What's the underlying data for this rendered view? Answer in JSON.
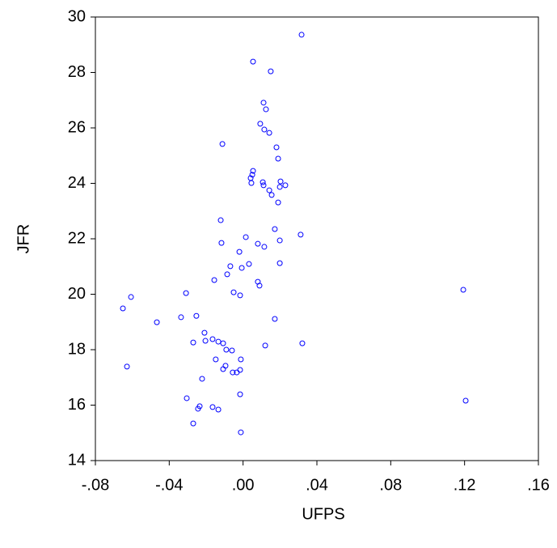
{
  "chart_data": {
    "type": "scatter",
    "x_label": "UFPS",
    "y_label": "JFR",
    "color": "#0000ff",
    "x": [
      0.0317,
      0.0054,
      0.015,
      0.0111,
      0.0124,
      0.0093,
      0.0115,
      0.0142,
      -0.0112,
      0.0181,
      0.019,
      0.0054,
      0.005,
      0.0041,
      0.0045,
      0.0107,
      0.0111,
      0.0203,
      0.0199,
      0.0229,
      0.0142,
      0.0155,
      0.019,
      -0.0121,
      0.0172,
      0.0312,
      0.0015,
      -0.0117,
      0.008,
      0.0115,
      0.0199,
      -0.002,
      0.0032,
      0.0199,
      -0.0069,
      -0.0007,
      -0.0086,
      -0.0156,
      0.008,
      0.0089,
      0.1193,
      -0.0309,
      -0.0051,
      -0.0016,
      -0.0607,
      -0.0651,
      -0.0253,
      -0.0336,
      0.0172,
      -0.0467,
      -0.0209,
      -0.027,
      -0.0204,
      -0.0165,
      -0.0134,
      -0.0108,
      0.0321,
      0.012,
      -0.0091,
      -0.006,
      -0.0148,
      -0.0012,
      -0.0629,
      -0.0095,
      -0.0108,
      -0.0016,
      -0.0056,
      -0.0034,
      -0.0222,
      -0.0016,
      0.1206,
      -0.0305,
      -0.0235,
      -0.0244,
      -0.0165,
      -0.0134,
      -0.027,
      -0.0012
    ],
    "values": [
      29.36,
      28.39,
      28.04,
      26.91,
      26.67,
      26.15,
      25.94,
      25.82,
      25.42,
      25.3,
      24.89,
      24.45,
      24.31,
      24.19,
      24.01,
      24.04,
      23.93,
      24.07,
      23.87,
      23.93,
      23.75,
      23.58,
      23.31,
      22.67,
      22.35,
      22.15,
      22.06,
      21.85,
      21.82,
      21.71,
      21.94,
      21.53,
      21.09,
      21.12,
      21.01,
      20.95,
      20.72,
      20.51,
      20.45,
      20.31,
      20.16,
      20.04,
      20.07,
      19.96,
      19.9,
      19.49,
      19.22,
      19.17,
      19.11,
      18.99,
      18.61,
      18.26,
      18.32,
      18.38,
      18.29,
      18.23,
      18.23,
      18.15,
      18.0,
      17.97,
      17.65,
      17.65,
      17.39,
      17.42,
      17.3,
      17.27,
      17.18,
      17.18,
      16.95,
      16.39,
      16.16,
      16.25,
      15.96,
      15.87,
      15.93,
      15.84,
      15.34,
      15.02
    ],
    "xlim": [
      -0.08,
      0.16
    ],
    "xticks": [
      {
        "value": -0.08,
        "label": "-.08"
      },
      {
        "value": -0.04,
        "label": "-.04"
      },
      {
        "value": 0,
        "label": ".00"
      },
      {
        "value": 0.04,
        "label": ".04"
      },
      {
        "value": 0.08,
        "label": ".08"
      },
      {
        "value": 0.12,
        "label": ".12"
      },
      {
        "value": 0.16,
        "label": ".16"
      }
    ],
    "ylim": [
      14,
      30
    ],
    "yticks": [
      14,
      16,
      18,
      20,
      22,
      24,
      26,
      28,
      30
    ]
  }
}
